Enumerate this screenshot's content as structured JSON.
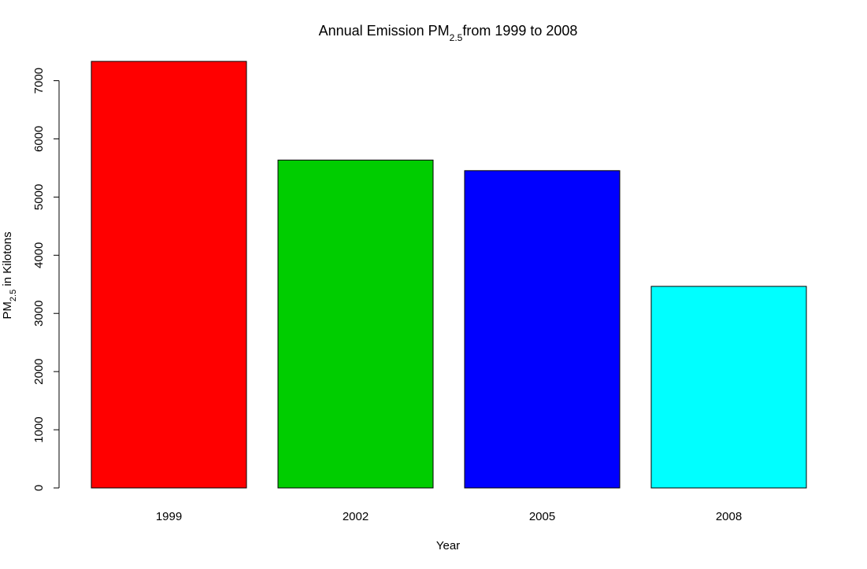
{
  "chart_data": {
    "type": "bar",
    "title": {
      "prefix": "Annual Emission PM",
      "subscript": "2.5",
      "suffix": "from 1999 to 2008"
    },
    "xlabel": "Year",
    "ylabel": {
      "prefix": "PM",
      "subscript": "2.5",
      "suffix": " in Kilotons"
    },
    "categories": [
      "1999",
      "2002",
      "2005",
      "2008"
    ],
    "values": [
      7332,
      5636,
      5454,
      3465
    ],
    "colors": [
      "#FF0000",
      "#00CD00",
      "#0000FF",
      "#00FFFF"
    ],
    "ylim": [
      0,
      7332
    ],
    "yticks": [
      0,
      1000,
      2000,
      3000,
      4000,
      5000,
      6000,
      7000
    ],
    "grid": false,
    "legend": "none"
  }
}
